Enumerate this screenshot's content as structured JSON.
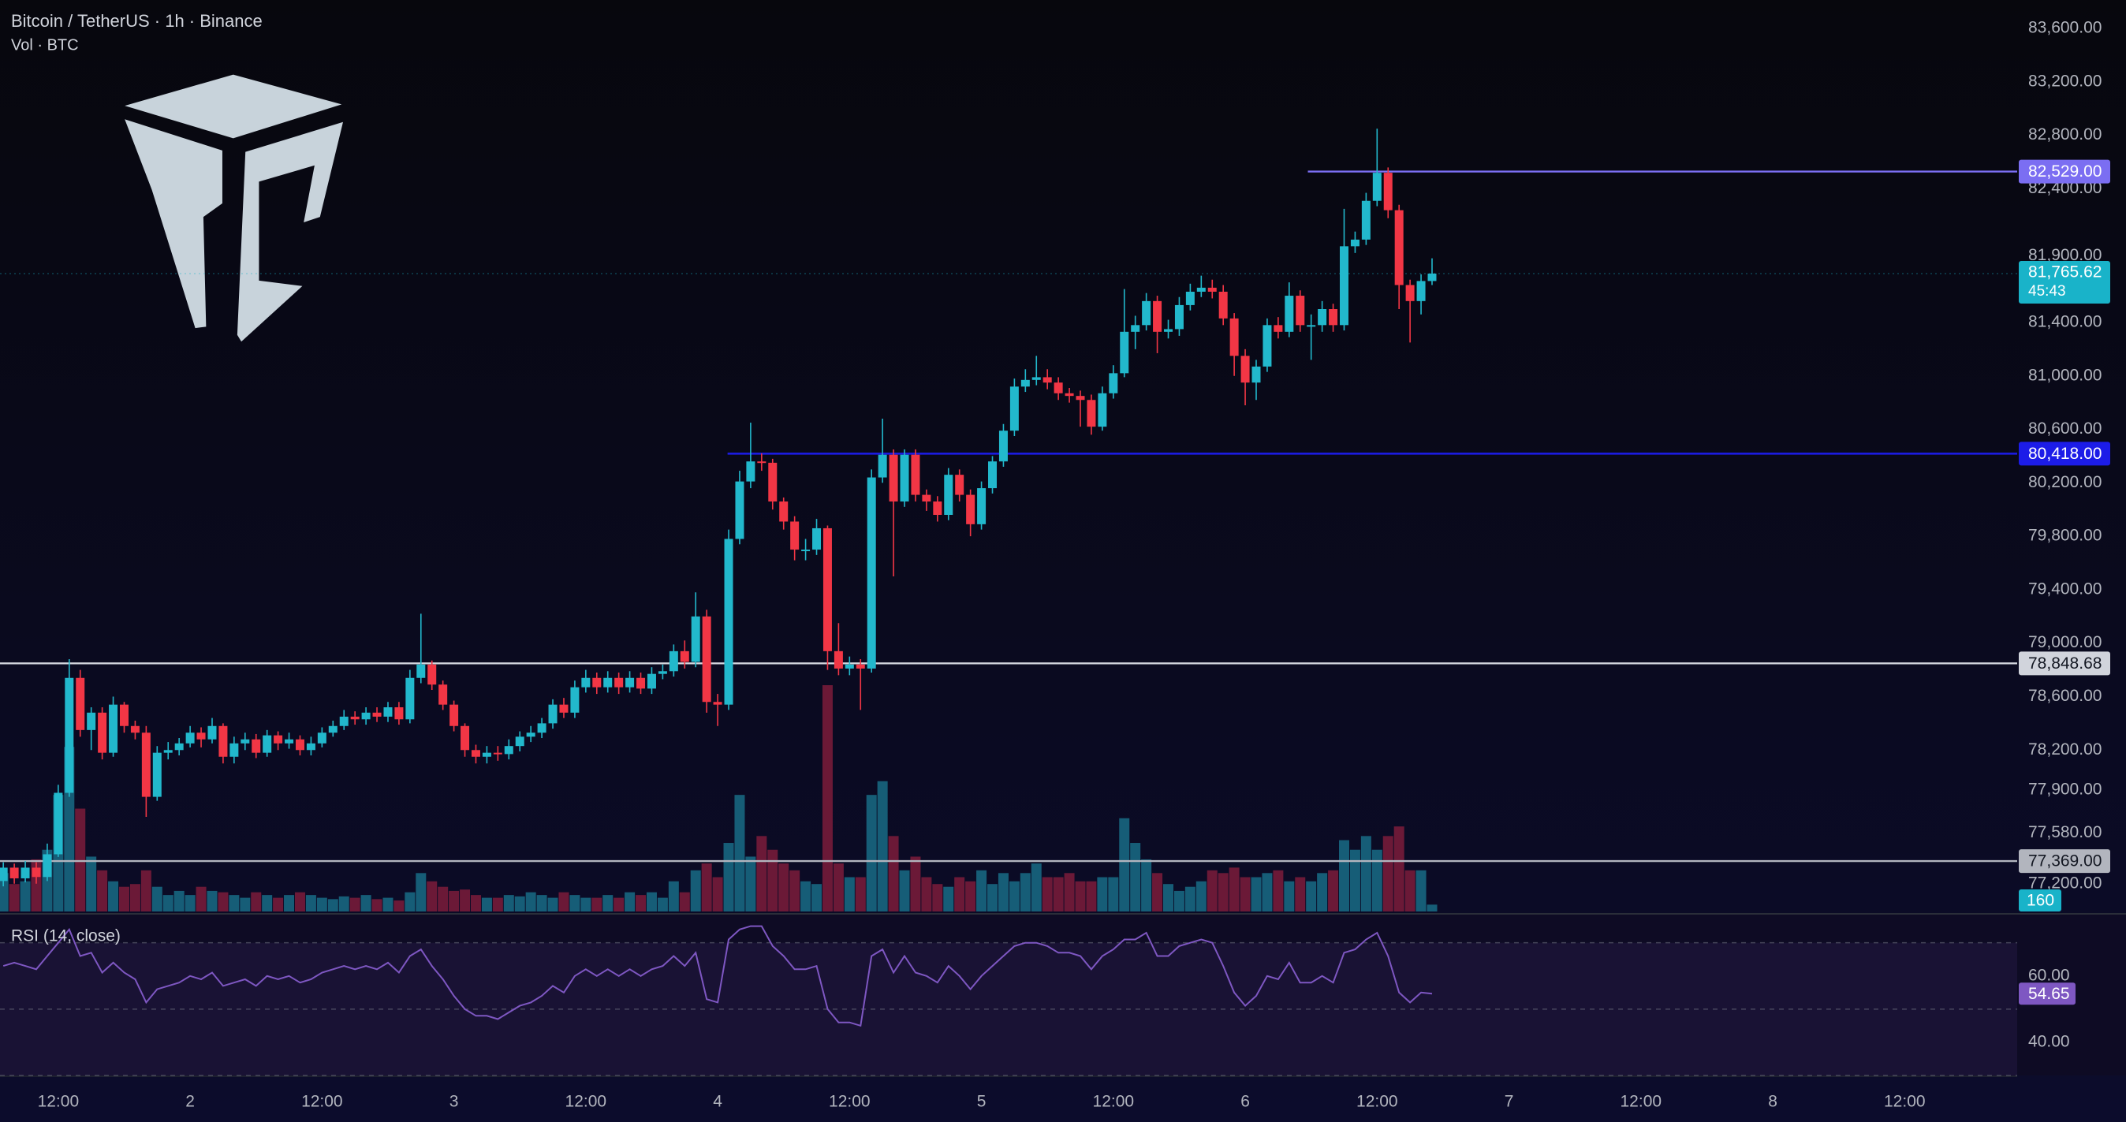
{
  "header": {
    "symbol": "Bitcoin / TetherUS · 1h · Binance",
    "volume_label": "Vol · BTC"
  },
  "chart_data": [
    {
      "type": "candlestick",
      "up_color": "#22b8cc",
      "down_color": "#f23645",
      "x": [
        7,
        8,
        9,
        10,
        11,
        12,
        13,
        14,
        15,
        16,
        17,
        18,
        19,
        20,
        21,
        22,
        23,
        24,
        25,
        26,
        27,
        28,
        29,
        30,
        31,
        32,
        33,
        34,
        35,
        36,
        37,
        38,
        39,
        40,
        41,
        42,
        43,
        44,
        45,
        46,
        47,
        48,
        49,
        50,
        51,
        52,
        53,
        54,
        55,
        56,
        57,
        58,
        59,
        60,
        61,
        62,
        63,
        64,
        65,
        66,
        67,
        68,
        69,
        70,
        71,
        72,
        73,
        74,
        75,
        76,
        77,
        78,
        79,
        80,
        81,
        82,
        83,
        84,
        85,
        86,
        87,
        88,
        89,
        90,
        91,
        92,
        93,
        94,
        95,
        96,
        97,
        98,
        99,
        100,
        101,
        102,
        103,
        104,
        105,
        106,
        107,
        108,
        109,
        110,
        111,
        112,
        113,
        114,
        115,
        116,
        117,
        118,
        119,
        120,
        121,
        122,
        123,
        124,
        125,
        126,
        127,
        128,
        129,
        130,
        131,
        132,
        133,
        134,
        135,
        136,
        137
      ],
      "open": [
        77220,
        77320,
        77240,
        77320,
        77250,
        77420,
        77880,
        78740,
        78350,
        78480,
        78180,
        78540,
        78380,
        78330,
        77850,
        78180,
        78200,
        78250,
        78330,
        78280,
        78380,
        78150,
        78250,
        78280,
        78180,
        78310,
        78250,
        78280,
        78200,
        78250,
        78330,
        78380,
        78450,
        78430,
        78480,
        78450,
        78520,
        78430,
        78740,
        78840,
        78690,
        78540,
        78380,
        78200,
        78150,
        78180,
        78170,
        78230,
        78300,
        78330,
        78400,
        78540,
        78480,
        78670,
        78740,
        78670,
        78740,
        78670,
        78740,
        78660,
        78770,
        78790,
        78940,
        78860,
        79200,
        78560,
        78540,
        79780,
        80210,
        80360,
        80350,
        80060,
        79910,
        79700,
        79700,
        79860,
        78940,
        78810,
        78840,
        78810,
        80240,
        80410,
        80060,
        80410,
        80110,
        80060,
        79960,
        80260,
        80110,
        79890,
        80160,
        80360,
        80590,
        80920,
        80970,
        80990,
        80950,
        80870,
        80850,
        80820,
        80620,
        80870,
        81020,
        81330,
        81380,
        81560,
        81330,
        81350,
        81530,
        81630,
        81660,
        81630,
        81430,
        81150,
        80950,
        81070,
        81380,
        81330,
        81600,
        81380,
        81380,
        81500,
        81380,
        81970,
        82020,
        82310,
        82520,
        82240,
        81680,
        81560,
        81710
      ],
      "high": [
        77360,
        77350,
        77370,
        77360,
        77500,
        77940,
        78880,
        78800,
        78520,
        78520,
        78600,
        78560,
        78420,
        78380,
        78230,
        78260,
        78290,
        78380,
        78370,
        78440,
        78400,
        78300,
        78330,
        78320,
        78350,
        78340,
        78330,
        78310,
        78300,
        78370,
        78420,
        78500,
        78490,
        78520,
        78520,
        78560,
        78560,
        78800,
        79220,
        78870,
        78720,
        78570,
        78400,
        78240,
        78230,
        78230,
        78280,
        78340,
        78380,
        78440,
        78580,
        78590,
        78720,
        78800,
        78780,
        78790,
        78780,
        78790,
        78780,
        78820,
        78840,
        78990,
        79020,
        79380,
        79250,
        78620,
        79850,
        80290,
        80650,
        80420,
        80380,
        80090,
        79950,
        79780,
        79930,
        79880,
        79150,
        78900,
        78880,
        80300,
        80680,
        80450,
        80450,
        80450,
        80150,
        80100,
        80310,
        80300,
        80150,
        80210,
        80400,
        80640,
        80980,
        81050,
        81150,
        81050,
        80990,
        80910,
        80890,
        80860,
        80920,
        81080,
        81650,
        81450,
        81620,
        81600,
        81420,
        81590,
        81690,
        81750,
        81720,
        81680,
        81470,
        81200,
        81120,
        81430,
        81440,
        81700,
        81640,
        81460,
        81560,
        81540,
        82250,
        82080,
        82370,
        82850,
        82560,
        82280,
        81720,
        81760,
        81880
      ],
      "low": [
        77180,
        77200,
        77210,
        77200,
        77220,
        77400,
        77850,
        78300,
        78200,
        78130,
        78150,
        78330,
        78280,
        77700,
        77820,
        78130,
        78160,
        78220,
        78220,
        78250,
        78100,
        78100,
        78200,
        78140,
        78150,
        78200,
        78210,
        78160,
        78160,
        78220,
        78300,
        78350,
        78390,
        78390,
        78410,
        78410,
        78390,
        78400,
        78700,
        78650,
        78500,
        78340,
        78150,
        78100,
        78100,
        78120,
        78130,
        78190,
        78260,
        78290,
        78360,
        78440,
        78440,
        78630,
        78620,
        78630,
        78620,
        78630,
        78620,
        78620,
        78730,
        78750,
        78810,
        78820,
        78480,
        78380,
        78500,
        79740,
        80160,
        80290,
        80000,
        79850,
        79620,
        79620,
        79660,
        78800,
        78760,
        78760,
        78500,
        78780,
        80200,
        79500,
        80020,
        80060,
        79990,
        79910,
        79920,
        80060,
        79800,
        79850,
        80120,
        80320,
        80550,
        80880,
        80930,
        80900,
        80820,
        80800,
        80620,
        80560,
        80590,
        80830,
        80990,
        81200,
        81340,
        81170,
        81280,
        81300,
        81490,
        81590,
        81580,
        81380,
        81000,
        80780,
        80820,
        81030,
        81280,
        81290,
        81330,
        81120,
        81330,
        81330,
        81340,
        81920,
        81980,
        82270,
        82180,
        81500,
        81250,
        81460,
        81680
      ],
      "close": [
        77320,
        77240,
        77320,
        77250,
        77420,
        77880,
        78740,
        78350,
        78480,
        78180,
        78540,
        78380,
        78330,
        77850,
        78180,
        78200,
        78250,
        78330,
        78280,
        78380,
        78150,
        78250,
        78280,
        78180,
        78310,
        78250,
        78280,
        78200,
        78250,
        78330,
        78380,
        78450,
        78430,
        78480,
        78450,
        78520,
        78430,
        78740,
        78840,
        78690,
        78540,
        78380,
        78200,
        78150,
        78180,
        78170,
        78230,
        78300,
        78330,
        78400,
        78540,
        78480,
        78670,
        78740,
        78670,
        78740,
        78670,
        78740,
        78660,
        78770,
        78790,
        78940,
        78860,
        79200,
        78560,
        78540,
        79780,
        80210,
        80360,
        80350,
        80060,
        79910,
        79700,
        79700,
        79860,
        78940,
        78810,
        78840,
        78810,
        80240,
        80410,
        80060,
        80410,
        80110,
        80060,
        79960,
        80260,
        80110,
        79890,
        80160,
        80360,
        80590,
        80920,
        80970,
        80990,
        80950,
        80870,
        80850,
        80820,
        80620,
        80870,
        81020,
        81330,
        81380,
        81560,
        81330,
        81350,
        81530,
        81630,
        81660,
        81630,
        81430,
        81150,
        80950,
        81070,
        81380,
        81330,
        81600,
        81380,
        81380,
        81500,
        81380,
        81970,
        82020,
        82310,
        82520,
        82240,
        81680,
        81560,
        81710,
        81765.62
      ],
      "last_label": "81,765.62",
      "countdown": "45:43",
      "last_color": "#19b3c9",
      "xlim": [
        6.7,
        190.24
      ],
      "xticks": [
        {
          "value": 12,
          "label": "12:00"
        },
        {
          "value": 24,
          "label": "2"
        },
        {
          "value": 36,
          "label": "12:00"
        },
        {
          "value": 48,
          "label": "3"
        },
        {
          "value": 60,
          "label": "12:00"
        },
        {
          "value": 72,
          "label": "4"
        },
        {
          "value": 84,
          "label": "12:00"
        },
        {
          "value": 96,
          "label": "5"
        },
        {
          "value": 108,
          "label": "12:00"
        },
        {
          "value": 120,
          "label": "6"
        },
        {
          "value": 132,
          "label": "12:00"
        },
        {
          "value": 144,
          "label": "7"
        },
        {
          "value": 156,
          "label": "12:00"
        },
        {
          "value": 168,
          "label": "8"
        },
        {
          "value": 180,
          "label": "12:00"
        }
      ],
      "ylim": [
        76992,
        83813
      ],
      "yticks": [
        {
          "value": 83600,
          "label": "83,600.00"
        },
        {
          "value": 83200,
          "label": "83,200.00"
        },
        {
          "value": 82800,
          "label": "82,800.00"
        },
        {
          "value": 82400,
          "label": "82,400.00"
        },
        {
          "value": 81900,
          "label": "81,900.00"
        },
        {
          "value": 81400,
          "label": "81,400.00"
        },
        {
          "value": 81000,
          "label": "81,000.00"
        },
        {
          "value": 80600,
          "label": "80,600.00"
        },
        {
          "value": 80200,
          "label": "80,200.00"
        },
        {
          "value": 79800,
          "label": "79,800.00"
        },
        {
          "value": 79400,
          "label": "79,400.00"
        },
        {
          "value": 79000,
          "label": "79,000.00"
        },
        {
          "value": 78600,
          "label": "78,600.00"
        },
        {
          "value": 78200,
          "label": "78,200.00"
        },
        {
          "value": 77900,
          "label": "77,900.00"
        },
        {
          "value": 77580,
          "label": "77,580.00"
        },
        {
          "value": 77200,
          "label": "77,200.00"
        }
      ],
      "grid": false,
      "price_lines": [
        {
          "value": 82529,
          "label": "82,529.00",
          "x0": 125.7,
          "color": "#7b6ef2",
          "text_color": "#ffffff"
        },
        {
          "value": 80418,
          "label": "80,418.00",
          "x0": 72.9,
          "color": "#1c1ce8",
          "text_color": "#ffffff"
        },
        {
          "value": 78848.68,
          "label": "78,848.68",
          "color": "#d1d4dc",
          "text_color": "#131722"
        },
        {
          "value": 77369,
          "label": "77,369.00",
          "color": "#b2b5be",
          "text_color": "#131722"
        }
      ]
    },
    {
      "type": "volume",
      "up_color": "#1b7a93",
      "down_color": "#8c1f3e",
      "label_color": "#19b3c9",
      "values": [
        896,
        640,
        704,
        1216,
        1440,
        2720,
        3840,
        2400,
        1280,
        960,
        704,
        576,
        640,
        960,
        576,
        384,
        480,
        384,
        576,
        480,
        448,
        384,
        320,
        448,
        384,
        320,
        384,
        448,
        384,
        320,
        288,
        352,
        320,
        384,
        288,
        320,
        256,
        448,
        896,
        704,
        576,
        480,
        512,
        384,
        320,
        320,
        384,
        352,
        448,
        384,
        320,
        448,
        384,
        320,
        320,
        384,
        320,
        448,
        384,
        448,
        320,
        704,
        448,
        960,
        1120,
        800,
        1600,
        2720,
        1280,
        1760,
        1440,
        1120,
        960,
        704,
        640,
        5280,
        1120,
        800,
        800,
        2720,
        3040,
        1760,
        960,
        1280,
        800,
        640,
        576,
        800,
        704,
        960,
        640,
        896,
        704,
        896,
        1120,
        800,
        800,
        896,
        704,
        704,
        800,
        800,
        2176,
        1600,
        1216,
        896,
        640,
        480,
        576,
        704,
        960,
        896,
        1024,
        800,
        800,
        896,
        960,
        704,
        800,
        704,
        896,
        960,
        1664,
        1440,
        1760,
        1440,
        1760,
        1984,
        960,
        960,
        160
      ]
    },
    {
      "type": "line",
      "title": "RSI (14, close)",
      "color": "#7e57c2",
      "values": [
        63,
        64,
        63,
        62,
        66,
        70,
        74,
        66,
        67,
        61,
        64,
        61,
        59,
        52,
        56,
        57,
        58,
        60,
        59,
        61,
        57,
        58,
        59,
        57,
        60,
        59,
        60,
        58,
        59,
        61,
        62,
        63,
        62,
        63,
        62,
        64,
        61,
        66,
        68,
        63,
        59,
        54,
        50,
        48,
        48,
        47,
        49,
        51,
        52,
        54,
        57,
        55,
        60,
        62,
        60,
        62,
        60,
        62,
        60,
        62,
        63,
        66,
        63,
        67,
        53,
        52,
        71,
        74,
        75,
        75,
        69,
        66,
        62,
        62,
        63,
        50,
        46,
        46,
        45,
        66,
        68,
        61,
        66,
        61,
        60,
        58,
        63,
        60,
        56,
        60,
        63,
        66,
        69,
        70,
        70,
        69,
        67,
        67,
        66,
        62,
        66,
        68,
        71,
        71,
        73,
        66,
        66,
        69,
        70,
        71,
        70,
        63,
        55,
        51,
        54,
        60,
        59,
        64,
        58,
        58,
        60,
        58,
        67,
        68,
        71,
        73,
        66,
        55,
        52,
        55,
        54.65
      ],
      "ylim": [
        30,
        78
      ],
      "yticks": [
        {
          "value": 40,
          "label": "40.00"
        },
        {
          "value": 60,
          "label": "60.00"
        }
      ],
      "levels": [
        70,
        50,
        30
      ]
    }
  ]
}
